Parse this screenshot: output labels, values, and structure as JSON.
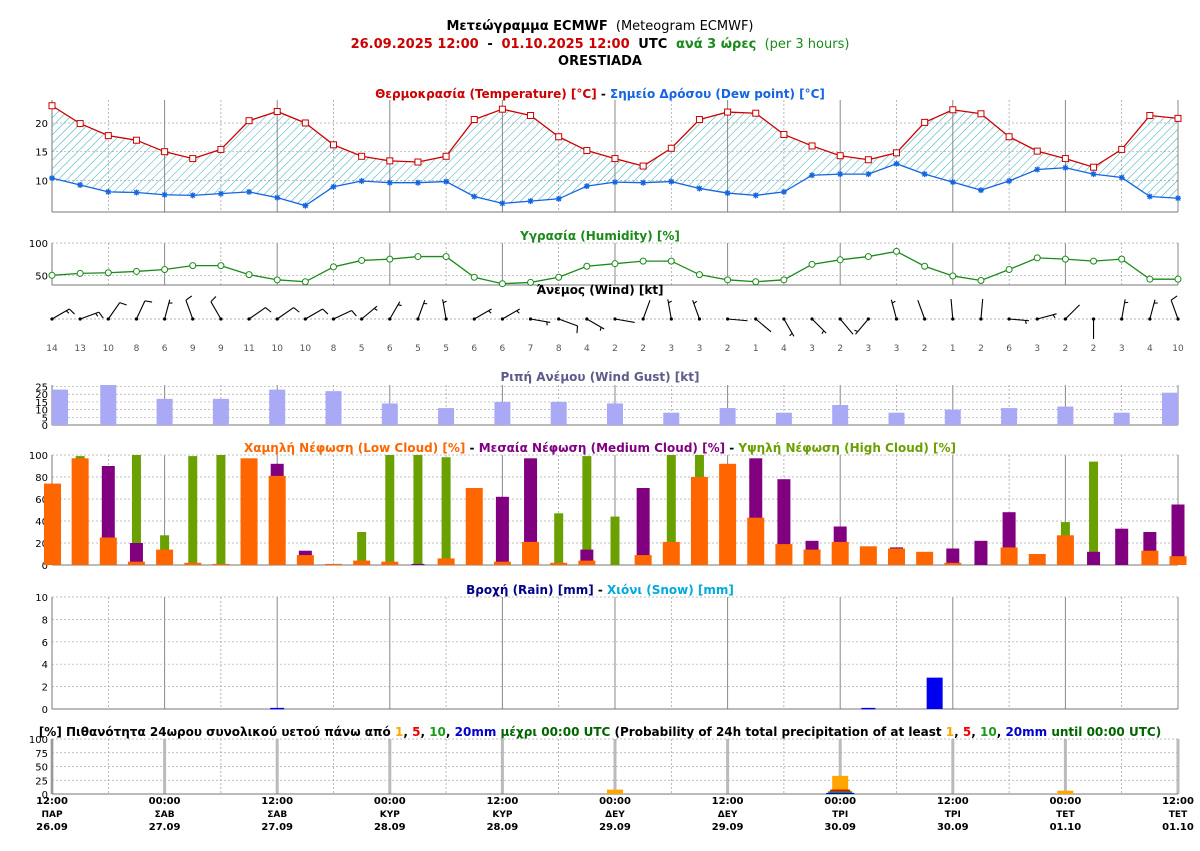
{
  "header": {
    "title_gr": "Μετεώγραμμα ECMWF",
    "title_en": "(Meteogram ECMWF)",
    "start": "26.09.2025 12:00",
    "dash": " - ",
    "end": "01.10.2025 12:00",
    "utc": " UTC ",
    "step_gr": "ανά 3 ώρες",
    "step_en": " (per 3 hours)",
    "location": "ORESTIADA"
  },
  "colors": {
    "temperature": "#cc0000",
    "dewpoint": "#1565e0",
    "humidity": "#1b8a1b",
    "wind": "#000000",
    "gust": "#a9a9f5",
    "low_cloud": "#ff6600",
    "medium_cloud": "#800080",
    "high_cloud": "#6aa000",
    "rain": "#0000ee",
    "snow": "#00aadd",
    "prob_1": "#ffa500",
    "prob_5": "#ee0000",
    "prob_10": "#1a9a1a",
    "prob_20": "#0000cc"
  },
  "chart_data": [
    {
      "type": "line",
      "title_parts": [
        {
          "text": "Θερμοκρασία (Temperature) [°C]",
          "color": "#cc0000"
        },
        {
          "text": " - ",
          "color": "#000000"
        },
        {
          "text": "Σημείο Δρόσου (Dew point) [°C]",
          "color": "#1565e0"
        }
      ],
      "yticks": [
        10,
        15,
        20
      ],
      "ylim": [
        4.5,
        24
      ],
      "fill_between": true,
      "series": [
        {
          "name": "Θερμοκρασία (Temperature) [°C]",
          "values": [
            23.0,
            19.9,
            17.8,
            17.0,
            15.0,
            13.8,
            15.4,
            20.4,
            22.0,
            20.0,
            16.2,
            14.2,
            13.4,
            13.2,
            14.2,
            20.6,
            22.4,
            21.3,
            17.6,
            15.2,
            13.8,
            12.5,
            15.6,
            20.6,
            21.9,
            21.7,
            18.0,
            16.0,
            14.3,
            13.6,
            14.8,
            20.1,
            22.3,
            21.6,
            17.6,
            15.1,
            13.8,
            12.3,
            15.4,
            21.3,
            20.8
          ]
        },
        {
          "name": "Σημείο Δρόσου (Dew point) [°C]",
          "values": [
            10.4,
            9.2,
            8.0,
            7.9,
            7.5,
            7.4,
            7.7,
            8.0,
            7.0,
            5.6,
            8.9,
            9.9,
            9.6,
            9.6,
            9.8,
            7.2,
            6.0,
            6.4,
            6.8,
            9.0,
            9.7,
            9.6,
            9.8,
            8.6,
            7.8,
            7.4,
            8.0,
            10.9,
            11.1,
            11.1,
            12.9,
            11.1,
            9.7,
            8.3,
            9.9,
            11.9,
            12.2,
            11.1,
            10.5,
            7.2,
            6.9
          ]
        }
      ]
    },
    {
      "type": "line",
      "title_parts": [
        {
          "text": "Υγρασία (Humidity) [%]",
          "color": "#1b8a1b"
        }
      ],
      "yticks": [
        50,
        100
      ],
      "ylim": [
        35,
        100
      ],
      "series": [
        {
          "name": "Υγρασία (Humidity) [%]",
          "values": [
            50,
            53,
            54,
            56,
            59,
            65,
            65,
            51,
            43,
            40,
            63,
            73,
            75,
            79,
            79,
            47,
            37,
            39,
            47,
            64,
            68,
            72,
            72,
            51,
            43,
            40,
            43,
            67,
            74,
            79,
            87,
            64,
            49,
            42,
            59,
            77,
            75,
            72,
            75,
            44,
            44
          ]
        }
      ]
    },
    {
      "type": "wind_barbs",
      "title_parts": [
        {
          "text": "Άνεμος (Wind) [kt]",
          "color": "#000000"
        }
      ],
      "speeds_kt": [
        14,
        13,
        10,
        8,
        6,
        9,
        9,
        11,
        10,
        10,
        8,
        5,
        6,
        5,
        5,
        6,
        6,
        7,
        8,
        4,
        2,
        2,
        3,
        3,
        2,
        1,
        4,
        3,
        2,
        3,
        3,
        2,
        1,
        2,
        6,
        3,
        2,
        2,
        3,
        4,
        10
      ],
      "directions_deg": [
        60,
        70,
        35,
        25,
        15,
        340,
        330,
        55,
        55,
        60,
        65,
        50,
        30,
        20,
        350,
        60,
        60,
        100,
        110,
        120,
        100,
        20,
        350,
        340,
        95,
        130,
        150,
        135,
        140,
        220,
        345,
        340,
        355,
        5,
        95,
        75,
        45,
        180,
        10,
        15,
        340
      ]
    },
    {
      "type": "bar",
      "title_parts": [
        {
          "text": "Ριπή Ανέμου (Wind Gust) [kt]",
          "color": "#5c5c8a"
        }
      ],
      "yticks": [
        0,
        5,
        10,
        15,
        20,
        25
      ],
      "ylim": [
        0,
        26
      ],
      "x_index": [
        0,
        2,
        4,
        6,
        8,
        10,
        12,
        14,
        16,
        18,
        20,
        22,
        24,
        26,
        28,
        30,
        32,
        34,
        36,
        38,
        40
      ],
      "values": [
        23,
        26,
        17,
        17,
        23,
        22,
        14,
        11,
        15,
        15,
        14,
        8,
        11,
        8,
        13,
        8,
        10,
        11,
        12,
        8,
        21
      ],
      "series_name": "Ριπή Ανέμου (Wind Gust) [kt]"
    },
    {
      "type": "bar",
      "title_parts": [
        {
          "text": "Χαμηλή Νέφωση (Low Cloud) [%]",
          "color": "#ff6600"
        },
        {
          "text": " - ",
          "color": "#000000"
        },
        {
          "text": "Μεσαία Νέφωση (Medium Cloud) [%]",
          "color": "#800080"
        },
        {
          "text": " - ",
          "color": "#000000"
        },
        {
          "text": "Υψηλή Νέφωση (High Cloud) [%]",
          "color": "#6aa000"
        }
      ],
      "yticks": [
        0,
        20,
        40,
        60,
        80,
        100
      ],
      "ylim": [
        0,
        100
      ],
      "series": [
        {
          "name": "Χαμηλή Νέφωση (Low Cloud) [%]",
          "values": [
            74,
            97,
            25,
            3,
            14,
            2,
            1,
            97,
            81,
            9,
            1,
            4,
            3,
            0,
            6,
            70,
            3,
            21,
            2,
            4,
            0,
            9,
            21,
            80,
            92,
            43,
            19,
            14,
            21,
            17,
            15,
            12,
            2,
            0,
            16,
            10,
            27,
            0,
            0,
            13,
            8
          ]
        },
        {
          "name": "Μεσαία Νέφωση (Medium Cloud) [%]",
          "values": [
            0,
            0,
            90,
            20,
            0,
            0,
            0,
            0,
            92,
            13,
            0,
            0,
            0,
            1,
            0,
            0,
            62,
            97,
            0,
            14,
            0,
            70,
            0,
            0,
            0,
            97,
            78,
            22,
            35,
            0,
            16,
            0,
            15,
            22,
            48,
            0,
            0,
            12,
            33,
            30,
            55
          ]
        },
        {
          "name": "Υψηλή Νέφωση (High Cloud) [%]",
          "values": [
            0,
            99,
            0,
            100,
            27,
            99,
            100,
            0,
            0,
            0,
            0,
            30,
            100,
            100,
            98,
            0,
            0,
            0,
            47,
            99,
            44,
            0,
            100,
            100,
            0,
            0,
            0,
            0,
            0,
            0,
            0,
            0,
            0,
            0,
            0,
            0,
            39,
            94,
            0,
            0,
            0
          ]
        }
      ]
    },
    {
      "type": "bar",
      "title_parts": [
        {
          "text": "Βροχή (Rain) [mm]",
          "color": "#00008b"
        },
        {
          "text": " - ",
          "color": "#000000"
        },
        {
          "text": "Χιόνι (Snow) [mm]",
          "color": "#00aadd"
        }
      ],
      "yticks": [
        0,
        2,
        4,
        6,
        8,
        10
      ],
      "ylim": [
        0,
        10
      ],
      "series": [
        {
          "name": "Βροχή (Rain) [mm]",
          "values": [
            0,
            0,
            0,
            0,
            0,
            0,
            0,
            0,
            0.1,
            0,
            0,
            0,
            0,
            0,
            0,
            0,
            0,
            0,
            0,
            0,
            0,
            0,
            0,
            0,
            0,
            0,
            0,
            0,
            0,
            0.1,
            0,
            0,
            0,
            0,
            0,
            0,
            0,
            0,
            0,
            0,
            0
          ]
        },
        {
          "name": "Βροχή (Rain) [mm]",
          "values": [
            0,
            0,
            0,
            0,
            0,
            0,
            0,
            0,
            0,
            0,
            0,
            0,
            0,
            0,
            0,
            0,
            0,
            0,
            0,
            0,
            0,
            0,
            0,
            0,
            0,
            0,
            0,
            0,
            0,
            0,
            0,
            2.8,
            0,
            0,
            0,
            0,
            0,
            0,
            0,
            0,
            0
          ]
        }
      ]
    },
    {
      "type": "bar",
      "title_parts": [
        {
          "text": "[%] Πιθανότητα 24ωρου συνολικού υετού πάνω από ",
          "color": "#000000",
          "bold": true
        },
        {
          "text": "1",
          "color": "#ffa500",
          "bold": true
        },
        {
          "text": ", ",
          "color": "#000000",
          "bold": true
        },
        {
          "text": "5",
          "color": "#ee0000",
          "bold": true
        },
        {
          "text": ", ",
          "color": "#000000",
          "bold": true
        },
        {
          "text": "10",
          "color": "#1a9a1a",
          "bold": true
        },
        {
          "text": ", ",
          "color": "#000000",
          "bold": true
        },
        {
          "text": "20mm",
          "color": "#0000cc",
          "bold": true
        },
        {
          "text": " μέχρι 00:00 UTC",
          "color": "#006400",
          "bold": true
        },
        {
          "text": " (Probability of 24h total precipitation of at least ",
          "color": "#000000"
        },
        {
          "text": "1",
          "color": "#ffa500"
        },
        {
          "text": ", ",
          "color": "#000000"
        },
        {
          "text": "5",
          "color": "#ee0000"
        },
        {
          "text": ", ",
          "color": "#000000"
        },
        {
          "text": "10",
          "color": "#1a9a1a"
        },
        {
          "text": ", ",
          "color": "#000000"
        },
        {
          "text": "20mm",
          "color": "#0000cc"
        },
        {
          "text": " until 00:00 UTC)",
          "color": "#006400"
        }
      ],
      "yticks": [
        0,
        25,
        50,
        75,
        100
      ],
      "ylim": [
        0,
        100
      ],
      "x_index": [
        20,
        28,
        36
      ],
      "series": [
        {
          "name": "1",
          "values": [
            8,
            33,
            6
          ]
        },
        {
          "name": "5",
          "values": [
            0,
            8,
            0
          ]
        },
        {
          "name": "10",
          "values": [
            0,
            5,
            0
          ]
        },
        {
          "name": "20mm",
          "values": [
            0,
            2,
            0
          ]
        }
      ]
    }
  ],
  "x_axis": {
    "ticks": [
      {
        "time": "12:00",
        "day": "ΠΑΡ",
        "date": "26.09"
      },
      {
        "time": "00:00",
        "day": "ΣΑΒ",
        "date": "27.09"
      },
      {
        "time": "12:00",
        "day": "ΣΑΒ",
        "date": "27.09"
      },
      {
        "time": "00:00",
        "day": "ΚΥΡ",
        "date": "28.09"
      },
      {
        "time": "12:00",
        "day": "ΚΥΡ",
        "date": "28.09"
      },
      {
        "time": "00:00",
        "day": "ΔΕΥ",
        "date": "29.09"
      },
      {
        "time": "12:00",
        "day": "ΔΕΥ",
        "date": "29.09"
      },
      {
        "time": "00:00",
        "day": "ΤΡΙ",
        "date": "30.09"
      },
      {
        "time": "12:00",
        "day": "ΤΡΙ",
        "date": "30.09"
      },
      {
        "time": "00:00",
        "day": "ΤΕΤ",
        "date": "01.10"
      },
      {
        "time": "12:00",
        "day": "ΤΕΤ",
        "date": "01.10"
      }
    ]
  }
}
